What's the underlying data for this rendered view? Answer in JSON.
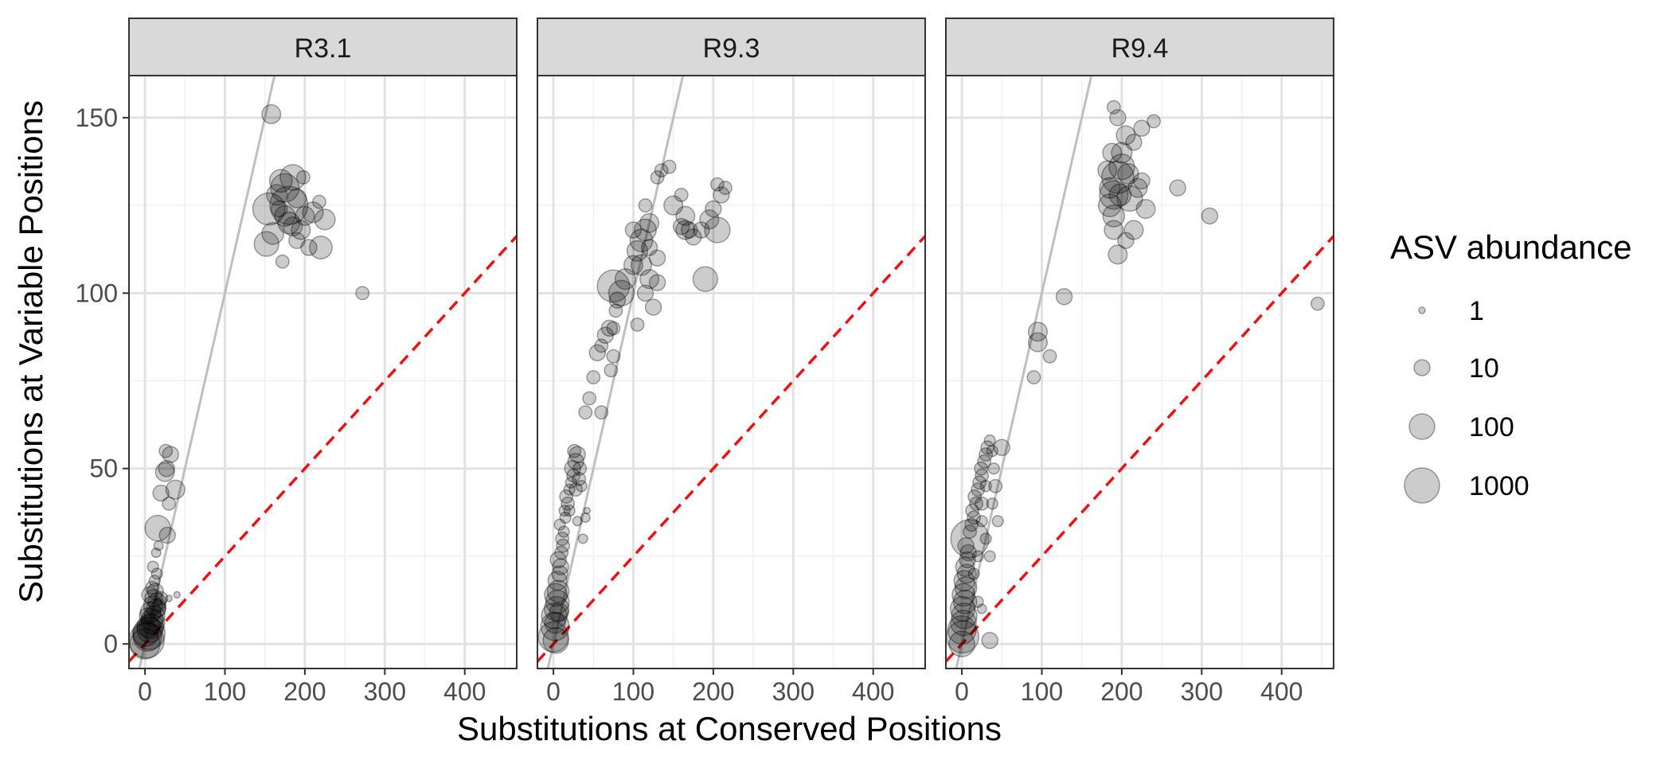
{
  "chart_data": {
    "type": "scatter",
    "xlabel": "Substitutions at Conserved Positions",
    "ylabel": "Substitutions at Variable Positions",
    "xlim": [
      -20,
      465
    ],
    "ylim": [
      -7,
      162
    ],
    "x_ticks": [
      0,
      100,
      200,
      300,
      400
    ],
    "y_ticks": [
      0,
      50,
      100,
      150
    ],
    "grid": true,
    "point_color": "#000000",
    "solid_line_color": "#bfbfbf",
    "dashed_line_color": "#ee1111",
    "strip_color": "#d9d9d9",
    "dashed_reference": {
      "slope": 0.25,
      "intercept": 0
    },
    "legend": {
      "title": "ASV abundance",
      "position": "right",
      "entries": [
        {
          "label": "1",
          "abundance": 1
        },
        {
          "label": "10",
          "abundance": 10
        },
        {
          "label": "100",
          "abundance": 100
        },
        {
          "label": "1000",
          "abundance": 1000
        }
      ]
    },
    "panels": [
      {
        "title": "R3.1",
        "solid_fit": {
          "slope": 1.0,
          "intercept": 0
        },
        "points": [
          [
            0,
            0,
            300
          ],
          [
            2,
            1,
            1000
          ],
          [
            3,
            2,
            200
          ],
          [
            1,
            3,
            100
          ],
          [
            5,
            3,
            500
          ],
          [
            6,
            4,
            100
          ],
          [
            8,
            5,
            80
          ],
          [
            10,
            6,
            60
          ],
          [
            4,
            5,
            50
          ],
          [
            9,
            7,
            40
          ],
          [
            12,
            8,
            30
          ],
          [
            7,
            9,
            30
          ],
          [
            14,
            10,
            20
          ],
          [
            10,
            11,
            20
          ],
          [
            15,
            12,
            15
          ],
          [
            11,
            13,
            15
          ],
          [
            6,
            14,
            10
          ],
          [
            13,
            15,
            10
          ],
          [
            16,
            10,
            10
          ],
          [
            3,
            8,
            10
          ],
          [
            18,
            11,
            5
          ],
          [
            20,
            13,
            5
          ],
          [
            9,
            16,
            5
          ],
          [
            12,
            18,
            3
          ],
          [
            15,
            20,
            3
          ],
          [
            10,
            22,
            3
          ],
          [
            14,
            26,
            2
          ],
          [
            17,
            28,
            2
          ],
          [
            30,
            13,
            1
          ],
          [
            40,
            14,
            1
          ],
          [
            16,
            33,
            100
          ],
          [
            28,
            31,
            10
          ],
          [
            20,
            43,
            10
          ],
          [
            30,
            40,
            5
          ],
          [
            38,
            44,
            20
          ],
          [
            25,
            49,
            20
          ],
          [
            27,
            50,
            10
          ],
          [
            26,
            55,
            5
          ],
          [
            32,
            54,
            10
          ],
          [
            158,
            151,
            20
          ],
          [
            152,
            114,
            80
          ],
          [
            160,
            117,
            40
          ],
          [
            155,
            124,
            500
          ],
          [
            180,
            125,
            2000
          ],
          [
            175,
            130,
            200
          ],
          [
            185,
            133,
            100
          ],
          [
            170,
            132,
            50
          ],
          [
            165,
            128,
            30
          ],
          [
            190,
            127,
            20
          ],
          [
            200,
            122,
            20
          ],
          [
            210,
            123,
            30
          ],
          [
            180,
            120,
            40
          ],
          [
            195,
            118,
            20
          ],
          [
            205,
            113,
            10
          ],
          [
            220,
            113,
            50
          ],
          [
            225,
            121,
            30
          ],
          [
            218,
            126,
            5
          ],
          [
            172,
            109,
            5
          ],
          [
            198,
            133,
            5
          ],
          [
            185,
            119,
            20
          ],
          [
            175,
            122,
            30
          ],
          [
            190,
            115,
            10
          ],
          [
            168,
            124,
            10
          ],
          [
            272,
            100,
            5
          ]
        ]
      },
      {
        "title": "R9.3",
        "solid_fit": {
          "slope": 1.0,
          "intercept": 0
        },
        "points": [
          [
            0,
            2,
            300
          ],
          [
            2,
            5,
            200
          ],
          [
            3,
            1,
            100
          ],
          [
            1,
            8,
            100
          ],
          [
            4,
            10,
            80
          ],
          [
            5,
            12,
            60
          ],
          [
            3,
            14,
            50
          ],
          [
            6,
            15,
            40
          ],
          [
            2,
            6,
            30
          ],
          [
            7,
            9,
            20
          ],
          [
            5,
            18,
            20
          ],
          [
            8,
            20,
            10
          ],
          [
            9,
            22,
            10
          ],
          [
            6,
            24,
            10
          ],
          [
            10,
            26,
            5
          ],
          [
            12,
            28,
            5
          ],
          [
            11,
            30,
            5
          ],
          [
            13,
            32,
            3
          ],
          [
            8,
            34,
            3
          ],
          [
            15,
            36,
            3
          ],
          [
            14,
            38,
            3
          ],
          [
            18,
            40,
            5
          ],
          [
            16,
            42,
            5
          ],
          [
            20,
            44,
            3
          ],
          [
            22,
            46,
            3
          ],
          [
            25,
            48,
            5
          ],
          [
            24,
            50,
            10
          ],
          [
            28,
            52,
            10
          ],
          [
            30,
            54,
            10
          ],
          [
            26,
            55,
            5
          ],
          [
            32,
            47,
            5
          ],
          [
            35,
            45,
            3
          ],
          [
            33,
            50,
            5
          ],
          [
            28,
            44,
            5
          ],
          [
            20,
            38,
            3
          ],
          [
            30,
            35,
            2
          ],
          [
            40,
            36,
            2
          ],
          [
            37,
            30,
            2
          ],
          [
            42,
            38,
            1
          ],
          [
            40,
            66,
            5
          ],
          [
            45,
            70,
            5
          ],
          [
            50,
            76,
            5
          ],
          [
            55,
            83,
            10
          ],
          [
            60,
            85,
            5
          ],
          [
            65,
            88,
            10
          ],
          [
            70,
            90,
            10
          ],
          [
            75,
            90,
            5
          ],
          [
            78,
            95,
            5
          ],
          [
            80,
            98,
            10
          ],
          [
            72,
            78,
            5
          ],
          [
            75,
            82,
            5
          ],
          [
            60,
            66,
            5
          ],
          [
            75,
            102,
            500
          ],
          [
            85,
            100,
            100
          ],
          [
            90,
            104,
            30
          ],
          [
            100,
            108,
            20
          ],
          [
            105,
            112,
            30
          ],
          [
            110,
            115,
            50
          ],
          [
            115,
            118,
            40
          ],
          [
            120,
            120,
            20
          ],
          [
            110,
            108,
            30
          ],
          [
            120,
            104,
            20
          ],
          [
            115,
            100,
            10
          ],
          [
            100,
            118,
            10
          ],
          [
            120,
            113,
            10
          ],
          [
            130,
            110,
            10
          ],
          [
            130,
            103,
            10
          ],
          [
            125,
            96,
            10
          ],
          [
            130,
            133,
            5
          ],
          [
            135,
            135,
            5
          ],
          [
            145,
            136,
            5
          ],
          [
            160,
            128,
            5
          ],
          [
            150,
            125,
            20
          ],
          [
            165,
            118,
            20
          ],
          [
            175,
            116,
            10
          ],
          [
            185,
            118,
            10
          ],
          [
            195,
            121,
            20
          ],
          [
            205,
            118,
            100
          ],
          [
            200,
            124,
            10
          ],
          [
            210,
            128,
            10
          ],
          [
            205,
            131,
            5
          ],
          [
            215,
            130,
            5
          ],
          [
            190,
            104,
            80
          ],
          [
            165,
            122,
            20
          ],
          [
            160,
            119,
            10
          ],
          [
            105,
            91,
            5
          ],
          [
            170,
            118,
            10
          ],
          [
            115,
            125,
            5
          ]
        ]
      },
      {
        "title": "R9.4",
        "solid_fit": {
          "slope": 1.0,
          "intercept": 0
        },
        "points": [
          [
            0,
            0,
            100
          ],
          [
            1,
            2,
            500
          ],
          [
            0,
            4,
            200
          ],
          [
            2,
            6,
            100
          ],
          [
            3,
            8,
            100
          ],
          [
            1,
            10,
            80
          ],
          [
            4,
            12,
            60
          ],
          [
            2,
            14,
            50
          ],
          [
            5,
            16,
            40
          ],
          [
            3,
            18,
            30
          ],
          [
            6,
            20,
            20
          ],
          [
            4,
            22,
            20
          ],
          [
            7,
            24,
            10
          ],
          [
            8,
            26,
            10
          ],
          [
            5,
            28,
            10
          ],
          [
            10,
            30,
            2000
          ],
          [
            10,
            32,
            5
          ],
          [
            12,
            34,
            5
          ],
          [
            15,
            36,
            5
          ],
          [
            13,
            38,
            5
          ],
          [
            18,
            40,
            5
          ],
          [
            16,
            42,
            5
          ],
          [
            20,
            44,
            5
          ],
          [
            22,
            46,
            5
          ],
          [
            25,
            48,
            5
          ],
          [
            24,
            50,
            5
          ],
          [
            28,
            52,
            5
          ],
          [
            30,
            54,
            5
          ],
          [
            32,
            56,
            5
          ],
          [
            35,
            58,
            3
          ],
          [
            38,
            55,
            3
          ],
          [
            40,
            50,
            3
          ],
          [
            42,
            45,
            5
          ],
          [
            38,
            40,
            3
          ],
          [
            45,
            35,
            3
          ],
          [
            25,
            35,
            3
          ],
          [
            30,
            30,
            3
          ],
          [
            20,
            25,
            3
          ],
          [
            35,
            25,
            3
          ],
          [
            50,
            56,
            10
          ],
          [
            15,
            20,
            3
          ],
          [
            25,
            40,
            5
          ],
          [
            30,
            45,
            3
          ],
          [
            35,
            1,
            10
          ],
          [
            20,
            12,
            3
          ],
          [
            25,
            10,
            2
          ],
          [
            90,
            76,
            5
          ],
          [
            95,
            86,
            20
          ],
          [
            95,
            89,
            20
          ],
          [
            110,
            82,
            5
          ],
          [
            128,
            99,
            10
          ],
          [
            185,
            130,
            30
          ],
          [
            190,
            128,
            200
          ],
          [
            195,
            133,
            500
          ],
          [
            200,
            136,
            100
          ],
          [
            185,
            125,
            50
          ],
          [
            190,
            122,
            40
          ],
          [
            200,
            140,
            30
          ],
          [
            205,
            145,
            20
          ],
          [
            195,
            150,
            10
          ],
          [
            190,
            153,
            5
          ],
          [
            215,
            143,
            10
          ],
          [
            225,
            147,
            10
          ],
          [
            240,
            149,
            5
          ],
          [
            190,
            118,
            20
          ],
          [
            195,
            111,
            20
          ],
          [
            210,
            127,
            100
          ],
          [
            220,
            130,
            20
          ],
          [
            225,
            132,
            10
          ],
          [
            230,
            124,
            20
          ],
          [
            215,
            118,
            20
          ],
          [
            205,
            115,
            10
          ],
          [
            270,
            130,
            10
          ],
          [
            310,
            122,
            10
          ],
          [
            445,
            97,
            5
          ],
          [
            188,
            140,
            20
          ],
          [
            198,
            128,
            40
          ],
          [
            208,
            134,
            30
          ],
          [
            182,
            135,
            20
          ]
        ]
      }
    ]
  }
}
